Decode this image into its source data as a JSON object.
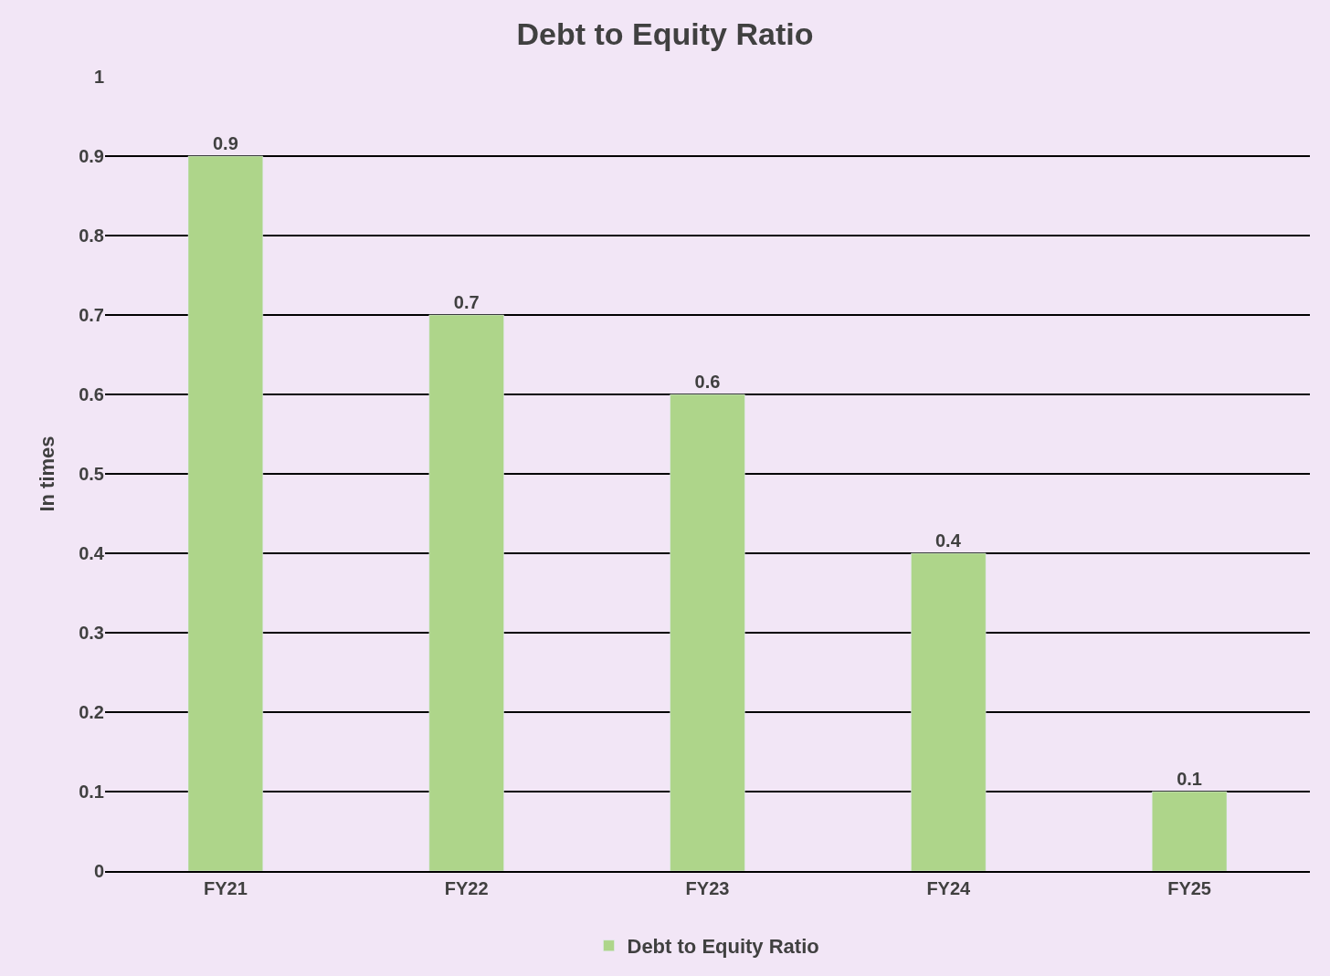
{
  "chart_data": {
    "type": "bar",
    "title": "Debt to Equity Ratio",
    "ylabel": "In times",
    "categories": [
      "FY21",
      "FY22",
      "FY23",
      "FY24",
      "FY25"
    ],
    "series": [
      {
        "name": "Debt to Equity Ratio",
        "color": "#aed58a",
        "values": [
          0.9,
          0.7,
          0.6,
          0.4,
          0.1
        ]
      }
    ],
    "ylim": [
      0,
      1
    ],
    "yticks": [
      0,
      0.1,
      0.2,
      0.3,
      0.4,
      0.5,
      0.6,
      0.7,
      0.8,
      0.9,
      1
    ],
    "grid": "y",
    "legend": "bottom",
    "data_labels": true
  }
}
